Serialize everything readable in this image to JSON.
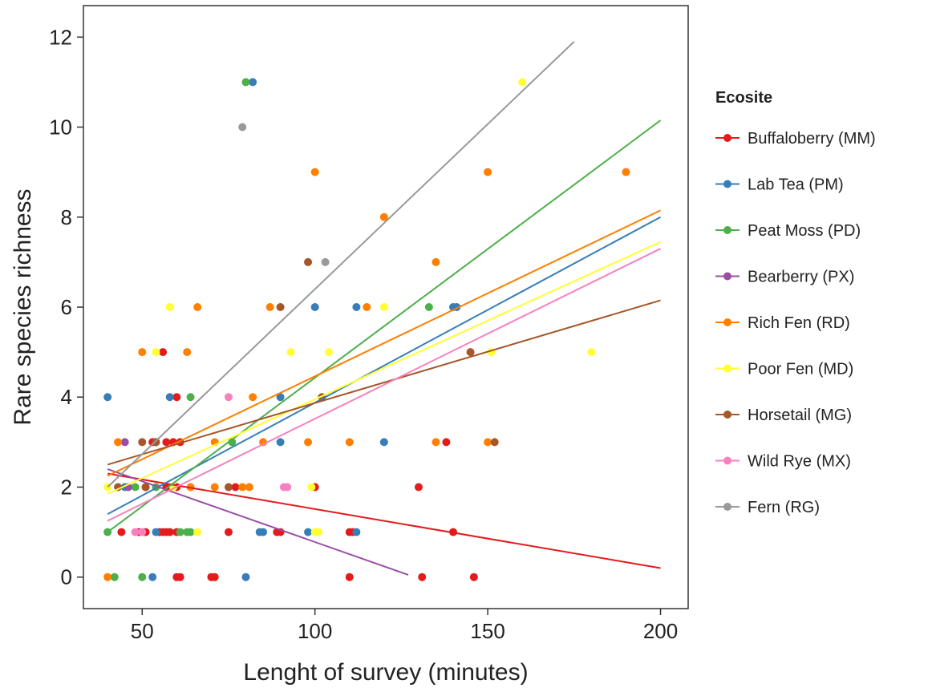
{
  "chart_data": {
    "type": "scatter",
    "title": "",
    "xlabel": "Lenght of survey (minutes)",
    "ylabel": "Rare species richness",
    "xlim": [
      33,
      208
    ],
    "ylim": [
      -0.7,
      12.7
    ],
    "xticks": [
      50,
      100,
      150,
      200
    ],
    "yticks": [
      0,
      2,
      4,
      6,
      8,
      10,
      12
    ],
    "grid": false,
    "legend": {
      "title": "Ecosite",
      "position": "right"
    },
    "series": [
      {
        "name": "Buffaloberry (MM)",
        "color": "#E41A1C",
        "points": [
          [
            44,
            1
          ],
          [
            49,
            1
          ],
          [
            51,
            1
          ],
          [
            55,
            1
          ],
          [
            56,
            1
          ],
          [
            57,
            1
          ],
          [
            58,
            1
          ],
          [
            60,
            1
          ],
          [
            56,
            5
          ],
          [
            57,
            3
          ],
          [
            59,
            3
          ],
          [
            60,
            4
          ],
          [
            61,
            3
          ],
          [
            53,
            3
          ],
          [
            57,
            2
          ],
          [
            60,
            2
          ],
          [
            60,
            0
          ],
          [
            61,
            0
          ],
          [
            70,
            0
          ],
          [
            71,
            0
          ],
          [
            75,
            1
          ],
          [
            89,
            1
          ],
          [
            90,
            1
          ],
          [
            77,
            2
          ],
          [
            100,
            2
          ],
          [
            110,
            1
          ],
          [
            111,
            1
          ],
          [
            110,
            0
          ],
          [
            130,
            2
          ],
          [
            131,
            0
          ],
          [
            138,
            3
          ],
          [
            140,
            1
          ],
          [
            146,
            0
          ]
        ],
        "trend": {
          "x": [
            40,
            200
          ],
          "y": [
            2.3,
            0.2
          ]
        }
      },
      {
        "name": "Lab Tea (PM)",
        "color": "#377EB8",
        "points": [
          [
            40,
            4
          ],
          [
            45,
            2
          ],
          [
            53,
            0
          ],
          [
            54,
            1
          ],
          [
            58,
            4
          ],
          [
            54,
            3
          ],
          [
            82,
            11
          ],
          [
            80,
            0
          ],
          [
            84,
            1
          ],
          [
            85,
            1
          ],
          [
            90,
            3
          ],
          [
            90,
            4
          ],
          [
            100,
            6
          ],
          [
            98,
            1
          ],
          [
            112,
            1
          ],
          [
            112,
            6
          ],
          [
            120,
            3
          ],
          [
            140,
            6
          ],
          [
            141,
            6
          ]
        ],
        "trend": {
          "x": [
            40,
            200
          ],
          "y": [
            1.4,
            8.0
          ]
        }
      },
      {
        "name": "Peat Moss (PD)",
        "color": "#4DAF4A",
        "points": [
          [
            40,
            1
          ],
          [
            42,
            0
          ],
          [
            48,
            2
          ],
          [
            50,
            0
          ],
          [
            51,
            2
          ],
          [
            54,
            2
          ],
          [
            61,
            1
          ],
          [
            63,
            1
          ],
          [
            64,
            4
          ],
          [
            64,
            1
          ],
          [
            76,
            3
          ],
          [
            80,
            11
          ],
          [
            133,
            6
          ]
        ],
        "trend": {
          "x": [
            40,
            200
          ],
          "y": [
            1.0,
            10.15
          ]
        }
      },
      {
        "name": "Bearberry (PX)",
        "color": "#984EA3",
        "points": [
          [
            45,
            3
          ],
          [
            46,
            2
          ]
        ],
        "trend": {
          "x": [
            40,
            127
          ],
          "y": [
            2.4,
            0.05
          ]
        }
      },
      {
        "name": "Rich Fen (RD)",
        "color": "#FF7F00",
        "points": [
          [
            40,
            0
          ],
          [
            43,
            3
          ],
          [
            50,
            5
          ],
          [
            51,
            2
          ],
          [
            63,
            5
          ],
          [
            64,
            2
          ],
          [
            66,
            6
          ],
          [
            71,
            2
          ],
          [
            71,
            3
          ],
          [
            79,
            2
          ],
          [
            81,
            2
          ],
          [
            82,
            4
          ],
          [
            85,
            3
          ],
          [
            87,
            6
          ],
          [
            98,
            3
          ],
          [
            100,
            9
          ],
          [
            110,
            3
          ],
          [
            115,
            6
          ],
          [
            120,
            8
          ],
          [
            135,
            3
          ],
          [
            135,
            7
          ],
          [
            150,
            3
          ],
          [
            150,
            9
          ],
          [
            190,
            9
          ]
        ],
        "trend": {
          "x": [
            40,
            200
          ],
          "y": [
            2.25,
            8.15
          ]
        }
      },
      {
        "name": "Poor Fen (MD)",
        "color": "#FFFF33",
        "points": [
          [
            40,
            2
          ],
          [
            54,
            5
          ],
          [
            58,
            6
          ],
          [
            59,
            2
          ],
          [
            66,
            1
          ],
          [
            93,
            5
          ],
          [
            99,
            2
          ],
          [
            100,
            1
          ],
          [
            101,
            1
          ],
          [
            104,
            5
          ],
          [
            120,
            6
          ],
          [
            151,
            5
          ],
          [
            160,
            11
          ],
          [
            180,
            5
          ]
        ],
        "trend": {
          "x": [
            40,
            200
          ],
          "y": [
            1.85,
            7.45
          ]
        }
      },
      {
        "name": "Horsetail (MG)",
        "color": "#A65628",
        "points": [
          [
            43,
            2
          ],
          [
            50,
            3
          ],
          [
            51,
            2
          ],
          [
            54,
            3
          ],
          [
            75,
            2
          ],
          [
            90,
            6
          ],
          [
            98,
            7
          ],
          [
            102,
            4
          ],
          [
            145,
            5
          ],
          [
            152,
            3
          ]
        ],
        "trend": {
          "x": [
            40,
            200
          ],
          "y": [
            2.5,
            6.15
          ]
        }
      },
      {
        "name": "Wild Rye (MX)",
        "color": "#F781BF",
        "points": [
          [
            48,
            1
          ],
          [
            50,
            1
          ],
          [
            75,
            4
          ],
          [
            91,
            2
          ],
          [
            92,
            2
          ]
        ],
        "trend": {
          "x": [
            40,
            200
          ],
          "y": [
            1.25,
            7.3
          ]
        }
      },
      {
        "name": "Fern (RG)",
        "color": "#999999",
        "points": [
          [
            79,
            10
          ],
          [
            103,
            7
          ]
        ],
        "trend": {
          "x": [
            40,
            175
          ],
          "y": [
            2.0,
            11.9
          ]
        }
      }
    ]
  }
}
